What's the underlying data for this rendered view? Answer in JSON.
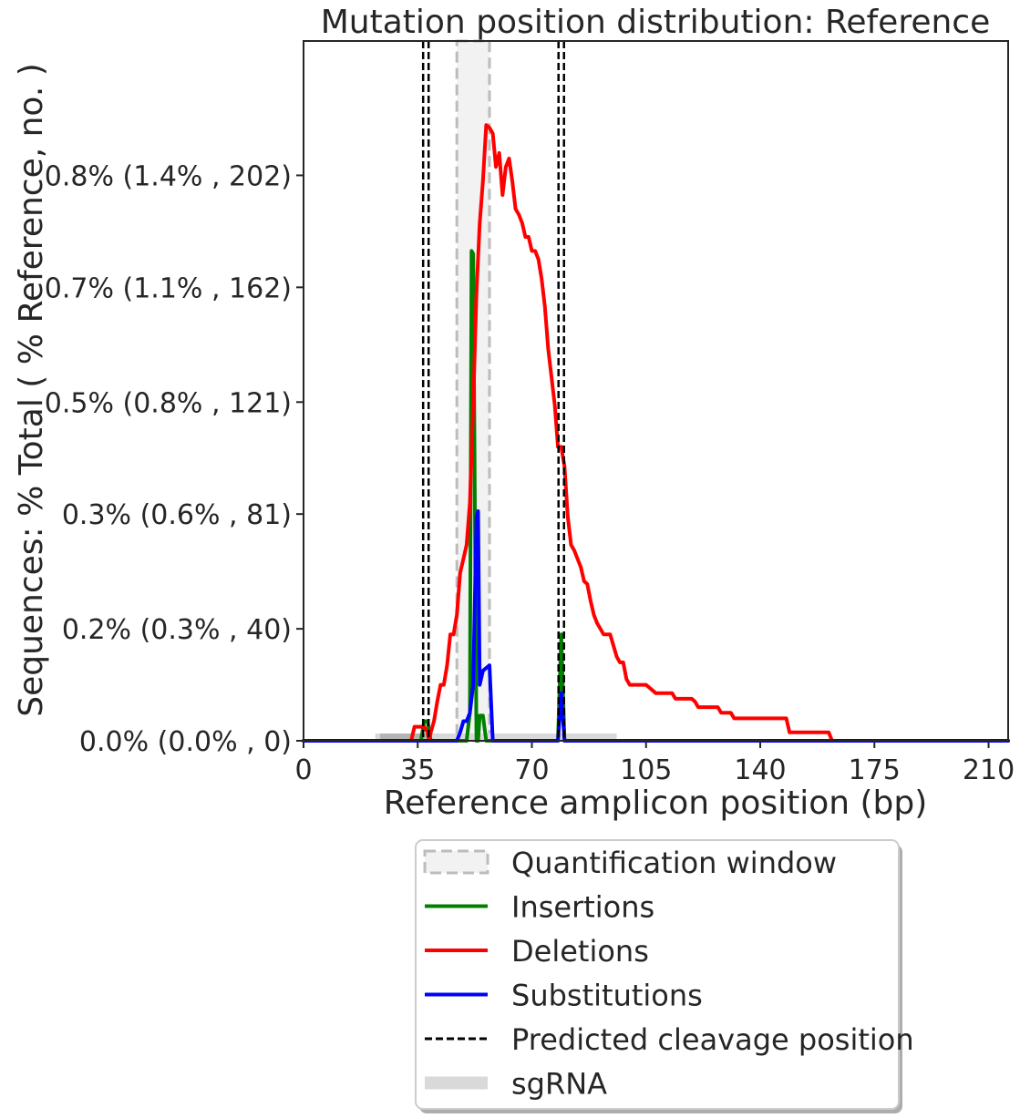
{
  "chart_data": {
    "type": "line",
    "title": "Mutation position distribution: Reference",
    "xlabel": "Reference amplicon position (bp)",
    "ylabel": "Sequences: % Total ( % Reference, no. )",
    "xlim": [
      0,
      216
    ],
    "ylim": [
      0,
      250
    ],
    "x_ticks": [
      0,
      35,
      70,
      105,
      140,
      175,
      210
    ],
    "y_ticks": [
      {
        "value": 0,
        "label": "0.0% (0.0% , 0)"
      },
      {
        "value": 40,
        "label": "0.2% (0.3% , 40)"
      },
      {
        "value": 81,
        "label": "0.3% (0.6% , 81)"
      },
      {
        "value": 121,
        "label": "0.5% (0.8% , 121)"
      },
      {
        "value": 162,
        "label": "0.7% (1.1% , 162)"
      },
      {
        "value": 202,
        "label": "0.8% (1.4% , 202)"
      }
    ],
    "quantification_window": [
      47,
      57
    ],
    "cleavage_positions": [
      37.5,
      79
    ],
    "sgrna_spans": [
      {
        "start": 22,
        "end": 96,
        "color": "#d9d9d9"
      },
      {
        "start": 23.5,
        "end": 38,
        "color": "#b4b4b4"
      }
    ],
    "series": [
      {
        "name": "Insertions",
        "color": "#008000",
        "x": [
          0,
          36,
          37,
          38,
          39,
          50,
          51,
          51.5,
          52,
          53,
          53.5,
          54,
          55,
          56,
          77,
          78,
          79,
          80,
          81,
          216
        ],
        "y": [
          0,
          0,
          7,
          7,
          0,
          0,
          10,
          175,
          174,
          0,
          0,
          9,
          9,
          0,
          0,
          0,
          38,
          0,
          0,
          0
        ]
      },
      {
        "name": "Deletions",
        "color": "#ff0000",
        "x": [
          0,
          33,
          34,
          37,
          38,
          38.5,
          39,
          40,
          41,
          42,
          43,
          44,
          45,
          46,
          47,
          48,
          49,
          50,
          51,
          52,
          53,
          54,
          55,
          56,
          57,
          58,
          59,
          60,
          61,
          62,
          63,
          64,
          65,
          66,
          67,
          68,
          69,
          70,
          71,
          72,
          73,
          74,
          75,
          76,
          77,
          78,
          79,
          80,
          81,
          82,
          83,
          84,
          85,
          86,
          87,
          88,
          89,
          90,
          91,
          92,
          93,
          94,
          95,
          96,
          97,
          98,
          99,
          100,
          101,
          102,
          103,
          104,
          105,
          106,
          107,
          108,
          109,
          110,
          111,
          112,
          113,
          114,
          115,
          116,
          117,
          118,
          119,
          120,
          121,
          122,
          123,
          124,
          125,
          126,
          127,
          128,
          129,
          130,
          131,
          132,
          133,
          134,
          135,
          140,
          145,
          148,
          149,
          150,
          160,
          161,
          162,
          163,
          216
        ],
        "y": [
          0,
          0,
          5,
          5,
          3,
          0,
          3,
          7,
          14,
          20,
          20,
          27,
          38,
          38,
          45,
          60,
          65,
          70,
          85,
          120,
          160,
          185,
          200,
          220,
          219,
          217,
          205,
          210,
          195,
          205,
          208,
          200,
          190,
          188,
          185,
          180,
          180,
          175,
          175,
          172,
          165,
          155,
          140,
          130,
          120,
          105,
          105,
          98,
          80,
          70,
          68,
          65,
          62,
          57,
          56,
          50,
          45,
          42,
          40,
          38,
          38,
          38,
          34,
          30,
          28,
          28,
          22,
          20,
          20,
          20,
          20,
          20,
          20,
          19,
          18,
          17,
          17,
          17,
          17,
          17,
          17,
          15,
          15,
          15,
          15,
          15,
          15,
          14,
          12,
          12,
          12,
          12,
          12,
          12,
          12,
          10,
          10,
          10,
          10,
          8,
          8,
          8,
          8,
          8,
          8,
          8,
          3,
          3,
          3,
          3,
          0,
          0,
          0
        ]
      },
      {
        "name": "Substitutions",
        "color": "#0000ff",
        "x": [
          0,
          47,
          48,
          49,
          50,
          51,
          52,
          53,
          53.5,
          54,
          55,
          56,
          57,
          58,
          59,
          77,
          78,
          79,
          80,
          81,
          216
        ],
        "y": [
          0,
          0,
          3,
          7,
          7,
          10,
          20,
          80,
          82,
          20,
          25,
          26,
          27,
          0,
          0,
          0,
          0,
          17,
          0,
          0,
          0
        ]
      }
    ],
    "legend": {
      "placement": "below",
      "items": [
        {
          "label": "Quantification window",
          "kind": "window"
        },
        {
          "label": "Insertions",
          "kind": "line",
          "color": "#008000"
        },
        {
          "label": "Deletions",
          "kind": "line",
          "color": "#ff0000"
        },
        {
          "label": "Substitutions",
          "kind": "line",
          "color": "#0000ff"
        },
        {
          "label": "Predicted cleavage position",
          "kind": "dashed"
        },
        {
          "label": "sgRNA",
          "kind": "band",
          "color": "#d9d9d9"
        }
      ]
    }
  }
}
